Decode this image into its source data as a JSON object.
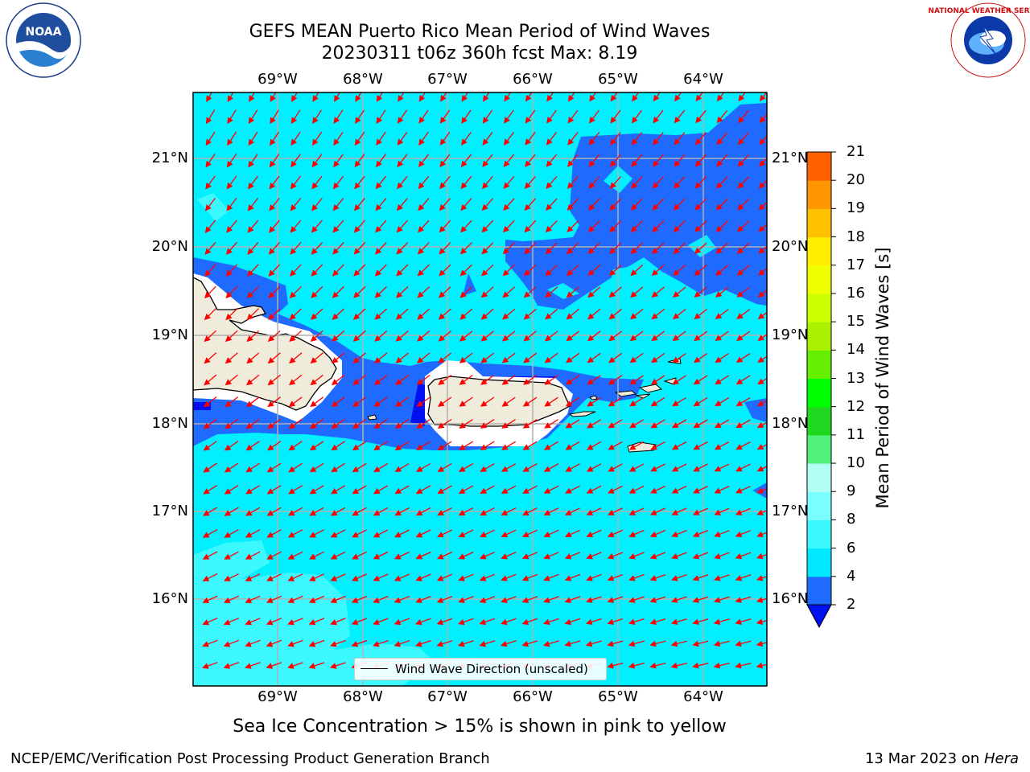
{
  "title_line1": "GEFS MEAN Puerto Rico Mean Period of Wind Waves",
  "title_line2": "20230311 t06z 360h fcst   Max: 8.19",
  "lon_ticks": [
    "69°W",
    "68°W",
    "67°W",
    "66°W",
    "65°W",
    "64°W"
  ],
  "lat_ticks": [
    "21°N",
    "20°N",
    "19°N",
    "18°N",
    "17°N",
    "16°N"
  ],
  "colorbar": {
    "label": "Mean Period of Wind Waves [s]",
    "ticks": [
      "2",
      "4",
      "6",
      "8",
      "9",
      "10",
      "11",
      "12",
      "13",
      "14",
      "15",
      "16",
      "17",
      "18",
      "19",
      "20",
      "21"
    ],
    "colors": [
      "#1f6bff",
      "#00e8ff",
      "#3cf8ff",
      "#7affff",
      "#b2fff3",
      "#50f07a",
      "#20d820",
      "#00ff00",
      "#66ee00",
      "#aaf000",
      "#ccff00",
      "#eeff00",
      "#ffee00",
      "#ffc000",
      "#ff9600",
      "#ff6000",
      "#ff3000",
      "#ff0000"
    ],
    "underflow_color": "#0010f0"
  },
  "legend_label": "Wind Wave Direction (unscaled)",
  "subtitle": "Sea Ice Concentration > 15% is shown in pink to yellow",
  "footer_left": "NCEP/EMC/Verification Post Processing Product Generation Branch",
  "footer_date": "13 Mar 2023 on ",
  "footer_machine": "Hera",
  "logos": {
    "left": "noaa-logo",
    "right": "nws-logo",
    "nws_ring_text": "NATIONAL WEATHER SERVICE"
  },
  "colors": {
    "ocean": "#00f0ff",
    "ocean_low": "#1f6bff",
    "land": "#efecdc",
    "arrow": "#ff0000",
    "grid": "#b0b0b0"
  }
}
